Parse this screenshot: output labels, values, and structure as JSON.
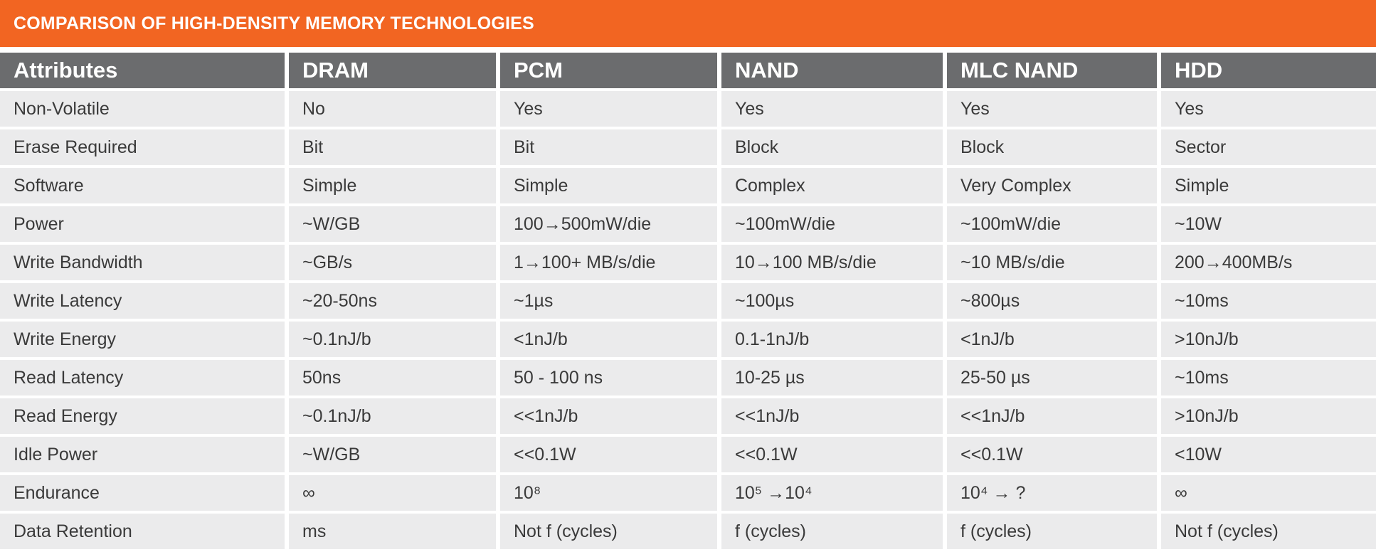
{
  "banner": {
    "title": "COMPARISON OF HIGH-DENSITY MEMORY TECHNOLOGIES"
  },
  "colors": {
    "banner": "#f26522",
    "header": "#6b6c6e",
    "row": "#ebebec"
  },
  "table": {
    "headers": [
      "Attributes",
      "DRAM",
      "PCM",
      "NAND",
      "MLC NAND",
      "HDD"
    ],
    "rows": [
      [
        "Non-Volatile",
        "No",
        "Yes",
        "Yes",
        "Yes",
        "Yes"
      ],
      [
        "Erase Required",
        "Bit",
        "Bit",
        "Block",
        "Block",
        "Sector"
      ],
      [
        "Software",
        "Simple",
        "Simple",
        "Complex",
        "Very Complex",
        "Simple"
      ],
      [
        "Power",
        "~W/GB",
        "100→500mW/die",
        "~100mW/die",
        "~100mW/die",
        "~10W"
      ],
      [
        "Write Bandwidth",
        "~GB/s",
        "1→100+ MB/s/die",
        "10→100 MB/s/die",
        "~10 MB/s/die",
        "200→400MB/s"
      ],
      [
        "Write Latency",
        "~20-50ns",
        "~1µs",
        "~100µs",
        "~800µs",
        "~10ms"
      ],
      [
        "Write Energy",
        "~0.1nJ/b",
        "<1nJ/b",
        "0.1-1nJ/b",
        "<1nJ/b",
        ">10nJ/b"
      ],
      [
        "Read Latency",
        "50ns",
        "50 - 100 ns",
        "10-25 µs",
        "25-50 µs",
        "~10ms"
      ],
      [
        "Read Energy",
        "~0.1nJ/b",
        "<<1nJ/b",
        "<<1nJ/b",
        "<<1nJ/b",
        ">10nJ/b"
      ],
      [
        "Idle Power",
        "~W/GB",
        "<<0.1W",
        "<<0.1W",
        "<<0.1W",
        "<10W"
      ],
      [
        "Endurance",
        "∞",
        "10⁸",
        "10⁵ →10⁴",
        "10⁴ → ?",
        "∞"
      ],
      [
        "Data Retention",
        "ms",
        "Not f (cycles)",
        "f (cycles)",
        "f (cycles)",
        "Not f (cycles)"
      ]
    ]
  }
}
